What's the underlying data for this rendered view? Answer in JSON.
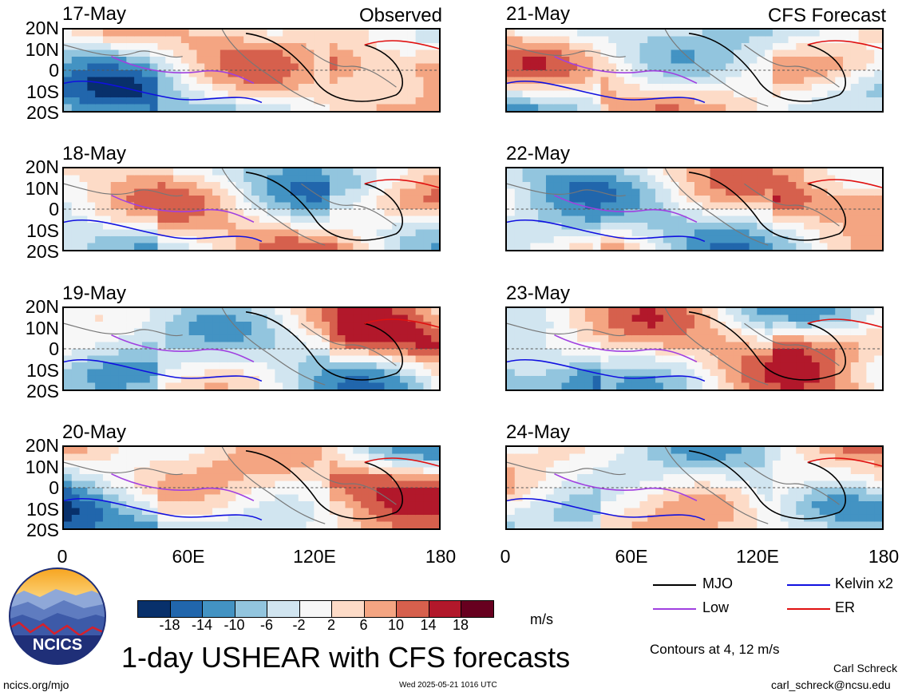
{
  "chart_data": {
    "type": "heatmap",
    "title": "1-day USHEAR with CFS forecasts",
    "units": "m/s",
    "variable": "USHEAR",
    "x_axis": {
      "ticks": [
        "0",
        "60E",
        "120E",
        "180"
      ],
      "range": [
        0,
        180
      ]
    },
    "y_axis": {
      "ticks": [
        "20N",
        "10N",
        "0",
        "10S",
        "20S"
      ],
      "range": [
        -20,
        20
      ]
    },
    "colorbar": {
      "labels": [
        "-18",
        "-14",
        "-10",
        "-6",
        "-2",
        "2",
        "6",
        "10",
        "14",
        "18"
      ],
      "colors": [
        "#08306b",
        "#2166ac",
        "#4393c3",
        "#92c5de",
        "#d1e5f0",
        "#f7f7f7",
        "#fddbc7",
        "#f4a582",
        "#d6604d",
        "#b2182b",
        "#67001f"
      ]
    },
    "observed_label": "Observed",
    "forecast_label": "CFS Forecast",
    "panels": [
      {
        "date": "17-May",
        "tag": "Observed"
      },
      {
        "date": "18-May"
      },
      {
        "date": "19-May"
      },
      {
        "date": "20-May"
      },
      {
        "date": "21-May",
        "tag": "CFS Forecast"
      },
      {
        "date": "22-May"
      },
      {
        "date": "23-May"
      },
      {
        "date": "24-May"
      }
    ],
    "legend": [
      {
        "name": "MJO",
        "color": "#000000"
      },
      {
        "name": "Kelvin x2",
        "color": "#1010e0"
      },
      {
        "name": "Low",
        "color": "#a040e0"
      },
      {
        "name": "ER",
        "color": "#e01010"
      }
    ],
    "contour_note": "Contours at 4, 12 m/s"
  },
  "logo_text": "NCICS",
  "footer": {
    "url": "ncics.org/mjo",
    "timestamp": "Wed 2025-05-21 1016 UTC",
    "author": "Carl Schreck",
    "email": "carl_schreck@ncsu.edu"
  }
}
